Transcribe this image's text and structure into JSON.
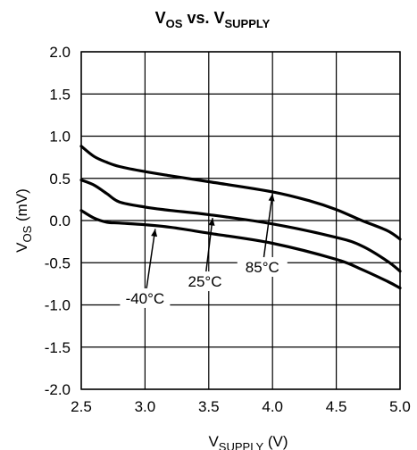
{
  "chart_data": {
    "type": "line",
    "title": {
      "main": "V",
      "sub": "OS",
      "mid": " vs. V",
      "sub2": "SUPPLY"
    },
    "xlabel": {
      "main": "V",
      "sub": "SUPPLY",
      "rest": " (V)"
    },
    "ylabel": {
      "main": "V",
      "sub": "OS",
      "rest": " (mV)"
    },
    "xlim": [
      2.5,
      5.0
    ],
    "ylim": [
      -2.0,
      2.0
    ],
    "xticks": [
      2.5,
      3.0,
      3.5,
      4.0,
      4.5,
      5.0
    ],
    "xtick_labels": [
      "2.5",
      "3.0",
      "3.5",
      "4.0",
      "4.5",
      "5.0"
    ],
    "yticks": [
      2.0,
      1.5,
      1.0,
      0.5,
      0.0,
      -0.5,
      -1.0,
      -1.5,
      -2.0
    ],
    "ytick_labels": [
      "2.0",
      "1.5",
      "1.0",
      "0.5",
      "0.0",
      "-0.5",
      "-1.0",
      "-1.5",
      "-2.0"
    ],
    "grid": true,
    "series": [
      {
        "name": "-40°C",
        "x": [
          2.5,
          2.6,
          2.7,
          2.8,
          3.0,
          3.2,
          3.5,
          4.0,
          4.5,
          4.7,
          4.9,
          5.0
        ],
        "y": [
          0.12,
          0.03,
          -0.02,
          -0.03,
          -0.05,
          -0.08,
          -0.15,
          -0.27,
          -0.46,
          -0.58,
          -0.72,
          -0.8
        ]
      },
      {
        "name": "25°C",
        "x": [
          2.5,
          2.6,
          2.7,
          2.8,
          3.0,
          3.2,
          3.5,
          4.0,
          4.5,
          4.7,
          4.9,
          5.0
        ],
        "y": [
          0.48,
          0.42,
          0.32,
          0.22,
          0.16,
          0.12,
          0.07,
          -0.04,
          -0.2,
          -0.3,
          -0.48,
          -0.6
        ]
      },
      {
        "name": "85°C",
        "x": [
          2.5,
          2.6,
          2.7,
          2.8,
          3.0,
          3.2,
          3.5,
          4.0,
          4.3,
          4.5,
          4.7,
          4.9,
          5.0
        ],
        "y": [
          0.88,
          0.76,
          0.69,
          0.64,
          0.58,
          0.53,
          0.46,
          0.34,
          0.23,
          0.13,
          0.0,
          -0.12,
          -0.22
        ]
      }
    ],
    "annotations": [
      {
        "text": "-40°C",
        "label_x": 3.0,
        "label_y": -0.92,
        "point_x": 3.08,
        "point_y": -0.1
      },
      {
        "text": "25°C",
        "label_x": 3.47,
        "label_y": -0.72,
        "point_x": 3.53,
        "point_y": 0.03
      },
      {
        "text": "85°C",
        "label_x": 3.92,
        "label_y": -0.55,
        "point_x": 4.0,
        "point_y": 0.32
      }
    ]
  }
}
